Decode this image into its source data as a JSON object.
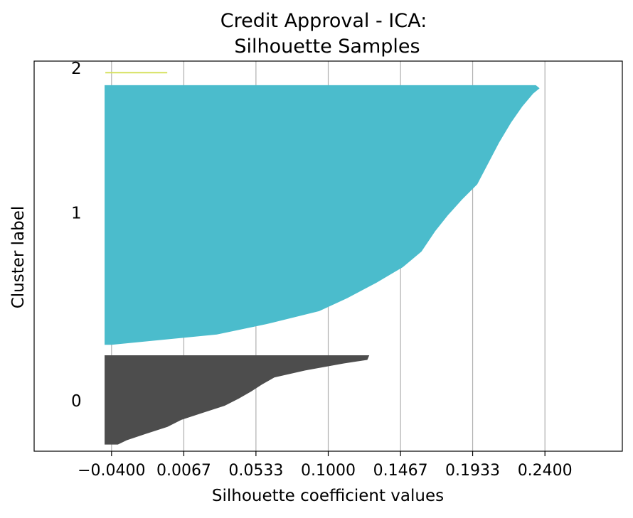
{
  "chart_data": {
    "type": "area",
    "title": "Credit Approval - ICA:\nSilhouette Samples",
    "title_lines": [
      "Credit Approval - ICA:",
      "Silhouette Samples"
    ],
    "xlabel": "Silhouette coefficient values",
    "ylabel": "Cluster label",
    "xlim": [
      -0.09,
      0.29
    ],
    "ylim": [
      0,
      27
    ],
    "x_ticks": [
      -0.04,
      0.0067,
      0.0533,
      0.1,
      0.1467,
      0.1933,
      0.24
    ],
    "x_tick_labels": [
      "−0.0400",
      "0.0067",
      "0.0533",
      "0.1000",
      "0.1467",
      "0.1933",
      "0.2400"
    ],
    "grid": "vertical",
    "clusters": [
      {
        "label": "0",
        "color": "#4d4d4d",
        "y_range": [
          0.5,
          6.6
        ],
        "profile": [
          [
            0.0,
            -0.036
          ],
          [
            0.05,
            -0.03
          ],
          [
            0.12,
            -0.018
          ],
          [
            0.2,
            -0.004
          ],
          [
            0.28,
            0.005
          ],
          [
            0.36,
            0.019
          ],
          [
            0.44,
            0.033
          ],
          [
            0.52,
            0.042
          ],
          [
            0.6,
            0.05
          ],
          [
            0.68,
            0.057
          ],
          [
            0.76,
            0.065
          ],
          [
            0.84,
            0.085
          ],
          [
            0.92,
            0.11
          ],
          [
            0.96,
            0.125
          ],
          [
            1.0,
            0.126
          ]
        ]
      },
      {
        "label": "1",
        "color": "#4bbccc",
        "y_range": [
          7.4,
          25.3
        ],
        "profile": [
          [
            0.0,
            -0.04
          ],
          [
            0.04,
            0.028
          ],
          [
            0.08,
            0.06
          ],
          [
            0.13,
            0.094
          ],
          [
            0.18,
            0.112
          ],
          [
            0.24,
            0.131
          ],
          [
            0.3,
            0.148
          ],
          [
            0.36,
            0.16
          ],
          [
            0.44,
            0.169
          ],
          [
            0.5,
            0.177
          ],
          [
            0.56,
            0.186
          ],
          [
            0.62,
            0.196
          ],
          [
            0.7,
            0.203
          ],
          [
            0.78,
            0.21
          ],
          [
            0.86,
            0.218
          ],
          [
            0.92,
            0.225
          ],
          [
            0.97,
            0.232
          ],
          [
            0.99,
            0.236
          ],
          [
            1.0,
            0.234
          ]
        ]
      },
      {
        "label": "2",
        "color": "#d6e15e",
        "y_range": [
          26.2,
          26.3
        ],
        "profile": [
          [
            0.0,
            0.0
          ],
          [
            1.0,
            0.0
          ]
        ]
      }
    ],
    "cluster_label_y": [
      3.5,
      16.5,
      26.5
    ],
    "cluster_label_x": -0.06
  }
}
